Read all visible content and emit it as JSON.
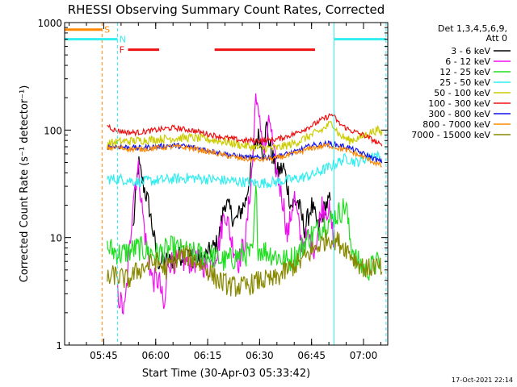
{
  "colors": {
    "black": "#000000",
    "magenta": "#ee11ee",
    "green": "#22dd22",
    "cyan": "#33eeee",
    "yellow": "#cccc00",
    "red": "#ee1111",
    "blue": "#1111ee",
    "orange": "#ff8800",
    "olive": "#888800"
  },
  "chart_data": {
    "type": "line",
    "title": "RHESSI Observing Summary Count Rates, Corrected",
    "xlabel": "Start Time (30-Apr-03 05:33:42)",
    "ylabel": "Corrected Count Rate (s⁻¹ detector⁻¹)",
    "yscale": "log",
    "xlim": [
      "05:33:42",
      "07:07:00"
    ],
    "ylim": [
      1,
      1000
    ],
    "x_ticks": [
      "05:45",
      "06:00",
      "06:15",
      "06:30",
      "06:45",
      "07:00"
    ],
    "y_ticks": [
      "1",
      "10",
      "100",
      "1000"
    ],
    "footer_date": "17-Oct-2021 22:14",
    "legend": {
      "placement": "right",
      "header": [
        "Det 1,3,4,5,6,9,",
        "Att 0"
      ],
      "entries": [
        {
          "label": "3 - 6 keV",
          "color": "#000000"
        },
        {
          "label": "6 - 12 keV",
          "color": "#ee11ee"
        },
        {
          "label": "12 - 25 keV",
          "color": "#22dd22"
        },
        {
          "label": "25 - 50 keV",
          "color": "#33eeee"
        },
        {
          "label": "50 - 100 keV",
          "color": "#cccc00"
        },
        {
          "label": "100 - 300 keV",
          "color": "#ee1111"
        },
        {
          "label": "300 - 800 keV",
          "color": "#1111ee"
        },
        {
          "label": "800 - 7000 keV",
          "color": "#ff8800"
        },
        {
          "label": "7000 - 15000 keV",
          "color": "#888800"
        }
      ]
    },
    "flags": [
      {
        "label": "S",
        "color": "#ff8800",
        "level": 860,
        "segments": [
          [
            "05:33:42",
            "05:44:30"
          ]
        ],
        "label_at": "05:45:10"
      },
      {
        "label": "N",
        "color": "#33eeee",
        "level": 700,
        "segments": [
          [
            "05:33:42",
            "05:49:00"
          ],
          [
            "06:51:30",
            "07:06:30"
          ]
        ],
        "label_at": "05:49:30"
      },
      {
        "label": "F",
        "color": "#ee1111",
        "level": 560,
        "segments": [
          [
            "05:52:00",
            "06:01:00"
          ],
          [
            "06:17:00",
            "06:46:00"
          ]
        ],
        "label_at": "05:49:30"
      }
    ],
    "vlines": [
      {
        "x": "05:44:30",
        "color": "#ff8800",
        "style": "dashed"
      },
      {
        "x": "05:49:00",
        "color": "#33eeee",
        "style": "dashed"
      },
      {
        "x": "06:51:30",
        "color": "#33eeee",
        "style": "solid"
      },
      {
        "x": "07:06:30",
        "color": "#33eeee",
        "style": "dashed"
      }
    ],
    "series": [
      {
        "color": "#000000",
        "jitter": 0.1,
        "points": [
          [
            "05:53:30",
            12
          ],
          [
            "05:55:00",
            50
          ],
          [
            "05:56:00",
            35
          ],
          [
            "05:58:00",
            20
          ],
          [
            "05:59:30",
            10
          ],
          [
            "06:00:30",
            6
          ],
          [
            "06:04:00",
            6
          ],
          [
            "06:08:00",
            7
          ],
          [
            "06:13:00",
            6
          ],
          [
            "06:15:00",
            7
          ],
          [
            "06:18:00",
            9
          ],
          [
            "06:20:00",
            22
          ],
          [
            "06:23:00",
            14
          ],
          [
            "06:26:00",
            22
          ],
          [
            "06:28:00",
            55
          ],
          [
            "06:29:00",
            80
          ],
          [
            "06:30:00",
            90
          ],
          [
            "06:31:00",
            60
          ],
          [
            "06:32:00",
            110
          ],
          [
            "06:33:00",
            70
          ],
          [
            "06:35:00",
            40
          ],
          [
            "06:37:00",
            45
          ],
          [
            "06:39:00",
            20
          ],
          [
            "06:41:00",
            22
          ],
          [
            "06:43:00",
            12
          ],
          [
            "06:45:00",
            20
          ],
          [
            "06:47:00",
            12
          ],
          [
            "06:49:00",
            20
          ],
          [
            "06:50:30",
            22
          ]
        ]
      },
      {
        "color": "#ee11ee",
        "jitter": 0.12,
        "points": [
          [
            "05:49:00",
            3
          ],
          [
            "05:51:00",
            2
          ],
          [
            "05:52:30",
            8
          ],
          [
            "05:53:30",
            25
          ],
          [
            "05:55:00",
            45
          ],
          [
            "05:56:00",
            20
          ],
          [
            "05:57:00",
            10
          ],
          [
            "05:59:00",
            4
          ],
          [
            "06:01:00",
            4
          ],
          [
            "06:02:30",
            2
          ],
          [
            "06:03:30",
            6
          ],
          [
            "06:08:00",
            6
          ],
          [
            "06:13:00",
            6
          ],
          [
            "06:15:00",
            5
          ],
          [
            "06:18:00",
            8
          ],
          [
            "06:20:00",
            18
          ],
          [
            "06:22:00",
            9
          ],
          [
            "06:24:00",
            6
          ],
          [
            "06:26:00",
            10
          ],
          [
            "06:28:00",
            50
          ],
          [
            "06:29:00",
            260
          ],
          [
            "06:29:40",
            120
          ],
          [
            "06:30:30",
            100
          ],
          [
            "06:31:30",
            60
          ],
          [
            "06:33:00",
            130
          ],
          [
            "06:34:00",
            60
          ],
          [
            "06:35:00",
            40
          ],
          [
            "06:37:00",
            20
          ],
          [
            "06:38:00",
            10
          ],
          [
            "06:40:00",
            25
          ],
          [
            "06:42:00",
            9
          ],
          [
            "06:44:00",
            10
          ],
          [
            "06:46:00",
            8
          ],
          [
            "06:48:00",
            20
          ],
          [
            "06:50:00",
            18
          ],
          [
            "06:51:20",
            10
          ]
        ]
      },
      {
        "color": "#22dd22",
        "jitter": 0.12,
        "points": [
          [
            "05:46:00",
            8
          ],
          [
            "05:50:00",
            7
          ],
          [
            "05:55:00",
            8
          ],
          [
            "06:00:00",
            7
          ],
          [
            "06:05:00",
            8
          ],
          [
            "06:10:00",
            7
          ],
          [
            "06:15:00",
            7
          ],
          [
            "06:20:00",
            6
          ],
          [
            "06:25:00",
            7
          ],
          [
            "06:28:00",
            7
          ],
          [
            "06:29:00",
            30
          ],
          [
            "06:29:30",
            8
          ],
          [
            "06:34:00",
            7
          ],
          [
            "06:38:00",
            6
          ],
          [
            "06:41:00",
            7
          ],
          [
            "06:44:00",
            10
          ],
          [
            "06:47:00",
            12
          ],
          [
            "06:51:00",
            15
          ],
          [
            "06:53:00",
            17
          ],
          [
            "06:55:00",
            20
          ],
          [
            "06:56:00",
            10
          ],
          [
            "06:58:00",
            6
          ],
          [
            "07:01:00",
            5
          ],
          [
            "07:05:00",
            6
          ]
        ]
      },
      {
        "color": "#33eeee",
        "jitter": 0.05,
        "points": [
          [
            "05:46:00",
            35
          ],
          [
            "05:50:00",
            35
          ],
          [
            "05:55:00",
            33
          ],
          [
            "06:00:00",
            34
          ],
          [
            "06:05:00",
            35
          ],
          [
            "06:10:00",
            36
          ],
          [
            "06:15:00",
            35
          ],
          [
            "06:20:00",
            34
          ],
          [
            "06:25:00",
            33
          ],
          [
            "06:30:00",
            32
          ],
          [
            "06:35:00",
            33
          ],
          [
            "06:40:00",
            35
          ],
          [
            "06:45:00",
            38
          ],
          [
            "06:50:00",
            45
          ],
          [
            "06:55:00",
            55
          ],
          [
            "06:58:00",
            50
          ],
          [
            "07:01:00",
            55
          ],
          [
            "07:03:00",
            60
          ],
          [
            "07:05:00",
            55
          ]
        ]
      },
      {
        "color": "#cccc00",
        "jitter": 0.04,
        "points": [
          [
            "05:46:00",
            75
          ],
          [
            "05:50:00",
            78
          ],
          [
            "05:55:00",
            80
          ],
          [
            "06:00:00",
            82
          ],
          [
            "06:05:00",
            84
          ],
          [
            "06:10:00",
            85
          ],
          [
            "06:15:00",
            82
          ],
          [
            "06:20:00",
            78
          ],
          [
            "06:25:00",
            72
          ],
          [
            "06:30:00",
            68
          ],
          [
            "06:35:00",
            68
          ],
          [
            "06:40:00",
            75
          ],
          [
            "06:45:00",
            90
          ],
          [
            "06:48:00",
            100
          ],
          [
            "06:51:00",
            118
          ],
          [
            "06:53:00",
            90
          ],
          [
            "06:56:00",
            80
          ],
          [
            "06:59:00",
            85
          ],
          [
            "07:02:00",
            95
          ],
          [
            "07:04:00",
            100
          ],
          [
            "07:05:30",
            92
          ]
        ]
      },
      {
        "color": "#ee1111",
        "jitter": 0.025,
        "points": [
          [
            "05:46:00",
            112
          ],
          [
            "05:48:00",
            100
          ],
          [
            "05:52:00",
            95
          ],
          [
            "05:55:00",
            95
          ],
          [
            "06:00:00",
            100
          ],
          [
            "06:05:00",
            105
          ],
          [
            "06:10:00",
            100
          ],
          [
            "06:15:00",
            92
          ],
          [
            "06:20:00",
            85
          ],
          [
            "06:25:00",
            80
          ],
          [
            "06:30:00",
            80
          ],
          [
            "06:35:00",
            82
          ],
          [
            "06:40:00",
            92
          ],
          [
            "06:45:00",
            110
          ],
          [
            "06:48:00",
            125
          ],
          [
            "06:51:00",
            140
          ],
          [
            "06:53:00",
            115
          ],
          [
            "06:56:00",
            100
          ],
          [
            "07:00:00",
            90
          ],
          [
            "07:03:00",
            80
          ],
          [
            "07:05:30",
            70
          ]
        ]
      },
      {
        "color": "#1111ee",
        "jitter": 0.025,
        "points": [
          [
            "05:46:00",
            70
          ],
          [
            "05:50:00",
            70
          ],
          [
            "05:55:00",
            68
          ],
          [
            "06:00:00",
            70
          ],
          [
            "06:05:00",
            72
          ],
          [
            "06:10:00",
            70
          ],
          [
            "06:15:00",
            65
          ],
          [
            "06:20:00",
            60
          ],
          [
            "06:25:00",
            56
          ],
          [
            "06:30:00",
            55
          ],
          [
            "06:35:00",
            57
          ],
          [
            "06:40:00",
            62
          ],
          [
            "06:45:00",
            72
          ],
          [
            "06:50:00",
            75
          ],
          [
            "06:55:00",
            70
          ],
          [
            "07:00:00",
            60
          ],
          [
            "07:05:30",
            50
          ]
        ]
      },
      {
        "color": "#ff8800",
        "jitter": 0.025,
        "points": [
          [
            "05:46:00",
            68
          ],
          [
            "05:50:00",
            68
          ],
          [
            "05:55:00",
            66
          ],
          [
            "06:00:00",
            68
          ],
          [
            "06:05:00",
            70
          ],
          [
            "06:10:00",
            68
          ],
          [
            "06:15:00",
            63
          ],
          [
            "06:20:00",
            58
          ],
          [
            "06:25:00",
            54
          ],
          [
            "06:30:00",
            53
          ],
          [
            "06:35:00",
            55
          ],
          [
            "06:40:00",
            60
          ],
          [
            "06:45:00",
            68
          ],
          [
            "06:50:00",
            72
          ],
          [
            "06:55:00",
            65
          ],
          [
            "07:00:00",
            56
          ],
          [
            "07:05:30",
            46
          ]
        ]
      },
      {
        "color": "#888800",
        "jitter": 0.1,
        "points": [
          [
            "05:46:00",
            4
          ],
          [
            "05:48:00",
            4.5
          ],
          [
            "05:52:00",
            4
          ],
          [
            "05:55:00",
            5
          ],
          [
            "06:00:00",
            6
          ],
          [
            "06:03:00",
            5
          ],
          [
            "06:05:00",
            6
          ],
          [
            "06:08:00",
            7
          ],
          [
            "06:12:00",
            6
          ],
          [
            "06:15:00",
            5
          ],
          [
            "06:18:00",
            4
          ],
          [
            "06:22:00",
            3.5
          ],
          [
            "06:26:00",
            3.5
          ],
          [
            "06:30:00",
            4
          ],
          [
            "06:34:00",
            4
          ],
          [
            "06:38:00",
            5
          ],
          [
            "06:42:00",
            6
          ],
          [
            "06:46:00",
            8
          ],
          [
            "06:50:00",
            10
          ],
          [
            "06:52:00",
            9.5
          ],
          [
            "06:55:00",
            8
          ],
          [
            "06:58:00",
            6
          ],
          [
            "07:01:00",
            5
          ],
          [
            "07:03:00",
            5.5
          ],
          [
            "07:05:30",
            5
          ]
        ]
      }
    ]
  }
}
